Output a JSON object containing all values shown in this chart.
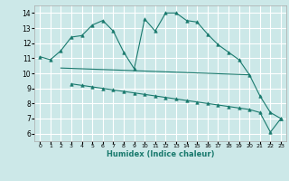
{
  "xlabel": "Humidex (Indice chaleur)",
  "bg_color": "#cce8e8",
  "grid_color": "#ffffff",
  "line_color": "#1a7a6e",
  "ylim": [
    5.5,
    14.5
  ],
  "xlim": [
    -0.5,
    23.5
  ],
  "yticks": [
    6,
    7,
    8,
    9,
    10,
    11,
    12,
    13,
    14
  ],
  "xticks": [
    0,
    1,
    2,
    3,
    4,
    5,
    6,
    7,
    8,
    9,
    10,
    11,
    12,
    13,
    14,
    15,
    16,
    17,
    18,
    19,
    20,
    21,
    22,
    23
  ],
  "curve1_x": [
    0,
    1,
    2,
    3,
    4,
    5,
    6,
    7,
    8,
    9,
    10,
    11,
    12,
    13,
    14,
    15,
    16,
    17,
    18,
    19,
    20,
    21,
    22,
    23
  ],
  "curve1_y": [
    11.1,
    10.9,
    11.5,
    12.4,
    12.5,
    13.2,
    13.5,
    12.8,
    11.4,
    10.3,
    13.6,
    12.8,
    14.0,
    14.0,
    13.5,
    13.4,
    12.6,
    11.9,
    11.4,
    10.9,
    9.9,
    8.5,
    7.4,
    7.0
  ],
  "curve2_x": [
    2,
    20
  ],
  "curve2_y": [
    10.35,
    9.9
  ],
  "curve3_x": [
    3,
    23
  ],
  "curve3_y": [
    9.3,
    6.1
  ],
  "curve3_marked_x": [
    3,
    4,
    5,
    6,
    7,
    8,
    9,
    10,
    11,
    12,
    13,
    14,
    15,
    16,
    17,
    18,
    19,
    20,
    21,
    22,
    23
  ],
  "curve3_marked_y": [
    9.3,
    9.2,
    9.1,
    9.0,
    8.9,
    8.8,
    8.7,
    8.6,
    8.5,
    8.4,
    8.3,
    8.2,
    8.1,
    8.0,
    7.9,
    7.8,
    7.7,
    7.6,
    7.4,
    6.1,
    7.0
  ]
}
